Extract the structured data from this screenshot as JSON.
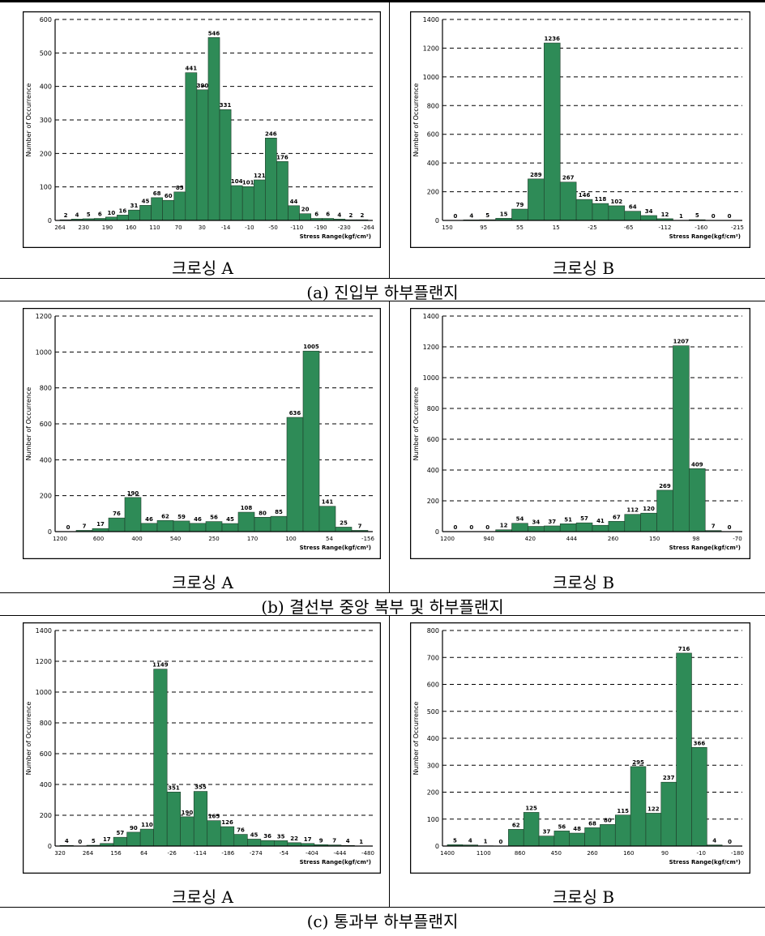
{
  "colors": {
    "bar": "#2e8b57",
    "bar_stroke": "#1f3d2a",
    "frame": "#000000"
  },
  "sections": [
    {
      "caption": "(a) 진입부 하부플랜지",
      "label_a": "크로싱 A",
      "label_b": "크로싱 B"
    },
    {
      "caption": "(b) 결선부 중앙 복부 및 하부플랜지",
      "label_a": "크로싱 A",
      "label_b": "크로싱 B"
    },
    {
      "caption": "(c) 통과부 하부플랜지",
      "label_a": "크로싱 A",
      "label_b": "크로싱 B"
    }
  ],
  "chart_data": [
    {
      "type": "bar",
      "panel": "a-A",
      "ylabel": "Number of Occurrence",
      "xlabel": "Stress Range(kgf/cm²)",
      "ylim": [
        0,
        600
      ],
      "yticks": [
        0,
        100,
        200,
        300,
        400,
        500,
        600
      ],
      "xticks": [
        "264",
        "230",
        "190",
        "160",
        "110",
        "70",
        "30",
        "-14",
        "-10",
        "-50",
        "-110",
        "-190",
        "-230",
        "-264"
      ],
      "values": [
        2,
        4,
        5,
        6,
        10,
        16,
        31,
        45,
        68,
        60,
        85,
        441,
        390,
        546,
        331,
        104,
        101,
        121,
        246,
        176,
        44,
        20,
        6,
        6,
        4,
        2,
        2
      ],
      "data_labels": [
        "2",
        "4",
        "5",
        "6",
        "10",
        "16",
        "31",
        "45",
        "68",
        "60",
        "85",
        "441",
        "390",
        "546",
        "331",
        "104",
        "101",
        "121",
        "246",
        "176",
        "44",
        "20",
        "6",
        "6",
        "4",
        "2",
        "2"
      ]
    },
    {
      "type": "bar",
      "panel": "a-B",
      "ylabel": "Number of Occurrence",
      "xlabel": "Stress Range(kgf/cm²)",
      "ylim": [
        0,
        1400
      ],
      "yticks": [
        0,
        200,
        400,
        600,
        800,
        1000,
        1200,
        1400
      ],
      "xticks": [
        "150",
        "95",
        "55",
        "15",
        "-25",
        "-65",
        "-112",
        "-160",
        "-215"
      ],
      "values": [
        0,
        4,
        5,
        15,
        79,
        289,
        1236,
        267,
        146,
        118,
        102,
        64,
        34,
        12,
        1,
        5,
        0,
        0
      ],
      "data_labels": [
        "0",
        "4",
        "5",
        "15",
        "79",
        "289",
        "1236",
        "267",
        "146",
        "118",
        "102",
        "64",
        "34",
        "12",
        "1",
        "5",
        "0",
        "0"
      ]
    },
    {
      "type": "bar",
      "panel": "b-A",
      "ylabel": "Number of Occurrence",
      "xlabel": "Stress Range(kgf/cm²)",
      "ylim": [
        0,
        1200
      ],
      "yticks": [
        0,
        200,
        400,
        600,
        800,
        1000,
        1200
      ],
      "xticks": [
        "1200",
        "600",
        "400",
        "540",
        "250",
        "170",
        "100",
        "54",
        "-156"
      ],
      "values": [
        0,
        7,
        17,
        76,
        190,
        46,
        62,
        59,
        46,
        56,
        45,
        108,
        80,
        85,
        636,
        1005,
        141,
        25,
        7
      ],
      "data_labels": [
        "0",
        "7",
        "17",
        "76",
        "190",
        "46",
        "62",
        "59",
        "46",
        "56",
        "45",
        "108",
        "80",
        "85",
        "636",
        "1005",
        "141",
        "25",
        "7"
      ]
    },
    {
      "type": "bar",
      "panel": "b-B",
      "ylabel": "Number of Occurrence",
      "xlabel": "Stress Range(kgf/cm²)",
      "ylim": [
        0,
        1400
      ],
      "yticks": [
        0,
        200,
        400,
        600,
        800,
        1000,
        1200,
        1400
      ],
      "xticks": [
        "1200",
        "940",
        "420",
        "444",
        "260",
        "150",
        "98",
        "-70"
      ],
      "values": [
        0,
        0,
        0,
        12,
        54,
        34,
        37,
        51,
        57,
        41,
        67,
        112,
        120,
        269,
        1207,
        409,
        7,
        0
      ],
      "data_labels": [
        "0",
        "0",
        "0",
        "12",
        "54",
        "34",
        "37",
        "51",
        "57",
        "41",
        "67",
        "112",
        "120",
        "269",
        "1207",
        "409",
        "7",
        "0"
      ]
    },
    {
      "type": "bar",
      "panel": "c-A",
      "ylabel": "Number of Occurrence",
      "xlabel": "Stress Range(kgf/cm²)",
      "ylim": [
        0,
        1400
      ],
      "yticks": [
        0,
        200,
        400,
        600,
        800,
        1000,
        1200,
        1400
      ],
      "xticks": [
        "320",
        "264",
        "156",
        "64",
        "-26",
        "-114",
        "-186",
        "-274",
        "-54",
        "-404",
        "-444",
        "-480"
      ],
      "values": [
        4,
        0,
        5,
        17,
        57,
        90,
        110,
        1149,
        351,
        190,
        355,
        165,
        126,
        76,
        45,
        36,
        35,
        22,
        17,
        9,
        7,
        4,
        1
      ],
      "data_labels": [
        "4",
        "0",
        "5",
        "17",
        "57",
        "90",
        "110",
        "1149",
        "351",
        "190",
        "355",
        "165",
        "126",
        "76",
        "45",
        "36",
        "35",
        "22",
        "17",
        "9",
        "7",
        "4",
        "1"
      ]
    },
    {
      "type": "bar",
      "panel": "c-B",
      "ylabel": "Number of Occurrence",
      "xlabel": "Stress Range(kgf/cm²)",
      "ylim": [
        0,
        800
      ],
      "yticks": [
        0,
        100,
        200,
        300,
        400,
        500,
        600,
        700,
        800
      ],
      "xticks": [
        "1400",
        "1100",
        "860",
        "450",
        "260",
        "160",
        "90",
        "-10",
        "-180"
      ],
      "values": [
        5,
        4,
        1,
        0,
        62,
        125,
        37,
        56,
        48,
        68,
        80,
        115,
        295,
        122,
        237,
        716,
        366,
        4,
        0
      ],
      "data_labels": [
        "5",
        "4",
        "1",
        "0",
        "62",
        "125",
        "37",
        "56",
        "48",
        "68",
        "80",
        "115",
        "295",
        "122",
        "237",
        "716",
        "366",
        "4",
        "0"
      ]
    }
  ]
}
